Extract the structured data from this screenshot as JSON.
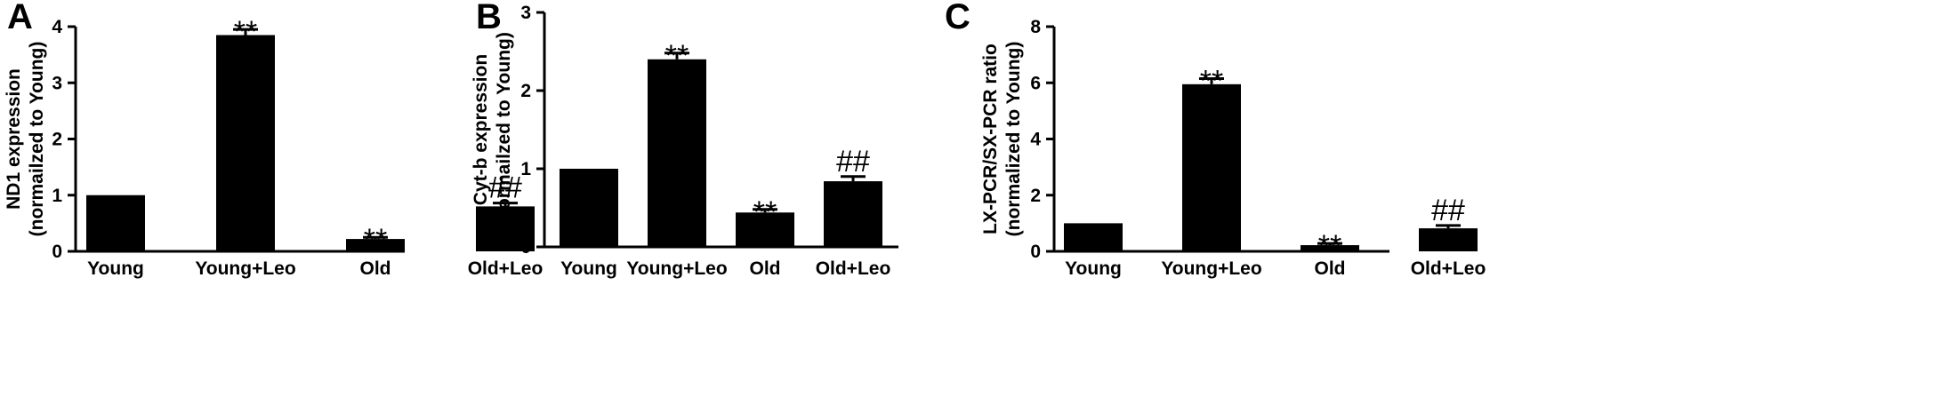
{
  "colors": {
    "bar": "#000000",
    "axis": "#000000",
    "background": "#ffffff"
  },
  "chart_data": [
    {
      "panel": "A",
      "type": "bar",
      "categories": [
        "Young",
        "Young+Leo",
        "Old",
        "Old+Leo"
      ],
      "values": [
        1.0,
        3.85,
        0.22,
        0.8
      ],
      "errors": [
        0.0,
        0.1,
        0.03,
        0.06
      ],
      "annotations": [
        "",
        "**",
        "**",
        "##"
      ],
      "ylabel_lines": [
        "ND1 expression",
        "(normailzed to Young)"
      ],
      "ylim": [
        0,
        4
      ],
      "yticks": [
        0,
        1,
        2,
        3,
        4
      ],
      "grid": false,
      "legend": "none"
    },
    {
      "panel": "B",
      "type": "bar",
      "categories": [
        "Young",
        "Young+Leo",
        "Old",
        "Old+Leo"
      ],
      "values": [
        1.0,
        2.4,
        0.44,
        0.84
      ],
      "errors": [
        0.0,
        0.08,
        0.04,
        0.06
      ],
      "annotations": [
        "",
        "**",
        "**",
        "##"
      ],
      "ylabel_lines": [
        "Cyt-b expression",
        "(normailzed to Young)"
      ],
      "ylim": [
        0,
        3
      ],
      "yticks": [
        0,
        1,
        2,
        3
      ],
      "grid": false,
      "legend": "none"
    },
    {
      "panel": "C",
      "type": "bar",
      "categories": [
        "Young",
        "Young+Leo",
        "Old",
        "Old+Leo"
      ],
      "values": [
        1.0,
        5.95,
        0.22,
        0.82
      ],
      "errors": [
        0.0,
        0.2,
        0.06,
        0.1
      ],
      "annotations": [
        "",
        "**",
        "**",
        "##"
      ],
      "ylabel_lines": [
        "LX-PCR/SX-PCR ratio",
        "(normalized to Young)"
      ],
      "ylim": [
        0,
        8
      ],
      "yticks": [
        0,
        2,
        4,
        6,
        8
      ],
      "grid": false,
      "legend": "none"
    }
  ]
}
